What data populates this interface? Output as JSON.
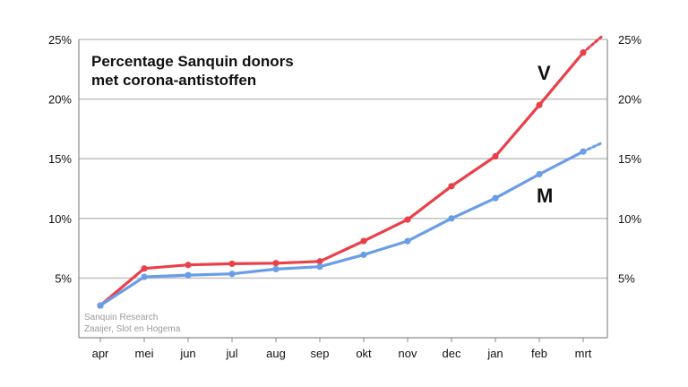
{
  "chart_data": {
    "type": "line",
    "title": [
      "Percentage Sanquin donors",
      "met corona-antistoffen"
    ],
    "categories": [
      "apr",
      "mei",
      "jun",
      "jul",
      "aug",
      "sep",
      "okt",
      "nov",
      "dec",
      "jan",
      "feb",
      "mrt"
    ],
    "y_ticks_left": [
      "5%",
      "10%",
      "15%",
      "20%",
      "25%"
    ],
    "y_ticks_right": [
      "5%",
      "10%",
      "15%",
      "20%",
      "25%"
    ],
    "y_tick_values": [
      5,
      10,
      15,
      20,
      25
    ],
    "ylim": [
      0,
      25
    ],
    "grid": true,
    "series": [
      {
        "name": "V",
        "color": "#e8414a",
        "values": [
          2.7,
          5.8,
          6.1,
          6.2,
          6.25,
          6.4,
          8.1,
          9.9,
          12.7,
          15.2,
          19.5,
          23.9
        ],
        "projection_end": 25.2
      },
      {
        "name": "M",
        "color": "#6a9de8",
        "values": [
          2.7,
          5.1,
          5.25,
          5.35,
          5.75,
          5.95,
          6.95,
          8.1,
          10.0,
          11.7,
          13.7,
          15.6
        ],
        "projection_end": 16.3
      }
    ],
    "credit": [
      "Sanquin Research",
      "Zaaijer, Slot en Hogema"
    ]
  }
}
